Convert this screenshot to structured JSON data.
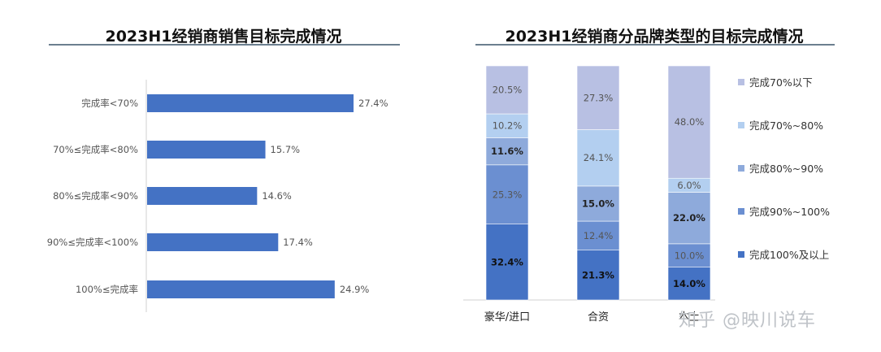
{
  "chart_data": [
    {
      "type": "bar",
      "orientation": "horizontal",
      "title": "2023H1经销商销售目标完成情况",
      "categories": [
        "完成率<70%",
        "70%≤完成率<80%",
        "80%≤完成率<90%",
        "90%≤完成率<100%",
        "100%≤完成率"
      ],
      "values": [
        27.4,
        15.7,
        14.6,
        17.4,
        24.9
      ],
      "value_labels": [
        "27.4%",
        "15.7%",
        "14.6%",
        "17.4%",
        "24.9%"
      ],
      "color": "#4472c4"
    },
    {
      "type": "bar",
      "stacked": true,
      "normalized": true,
      "title": "2023H1经销商分品牌类型的目标完成情况",
      "categories": [
        "豪华/进口",
        "合资",
        "本土"
      ],
      "series": [
        {
          "name": "完成100%及以上",
          "color": "#4472c4",
          "values": [
            32.4,
            21.3,
            14.0
          ],
          "labels": [
            "32.4%",
            "21.3%",
            "14.0%"
          ],
          "bold": true
        },
        {
          "name": "完成90%~100%",
          "color": "#6b8fd1",
          "values": [
            25.3,
            12.4,
            10.0
          ],
          "labels": [
            "25.3%",
            "12.4%",
            "10.0%"
          ],
          "bold": false
        },
        {
          "name": "完成80%~90%",
          "color": "#8eaadb",
          "values": [
            11.6,
            15.0,
            22.0
          ],
          "labels": [
            "11.6%",
            "15.0%",
            "22.0%"
          ],
          "bold": true
        },
        {
          "name": "完成70%~80%",
          "color": "#b3cff0",
          "values": [
            10.2,
            24.1,
            6.0
          ],
          "labels": [
            "10.2%",
            "24.1%",
            "6.0%"
          ],
          "bold": false
        },
        {
          "name": "完成70%以下",
          "color": "#b8c0e3",
          "values": [
            20.5,
            27.3,
            48.0
          ],
          "labels": [
            "20.5%",
            "27.3%",
            "48.0%"
          ],
          "bold": false
        }
      ],
      "legend_order": [
        "完成70%以下",
        "完成70%~80%",
        "完成80%~90%",
        "完成90%~100%",
        "完成100%及以上"
      ],
      "legend_position": "right"
    }
  ],
  "watermark": "知乎 @映川说车"
}
